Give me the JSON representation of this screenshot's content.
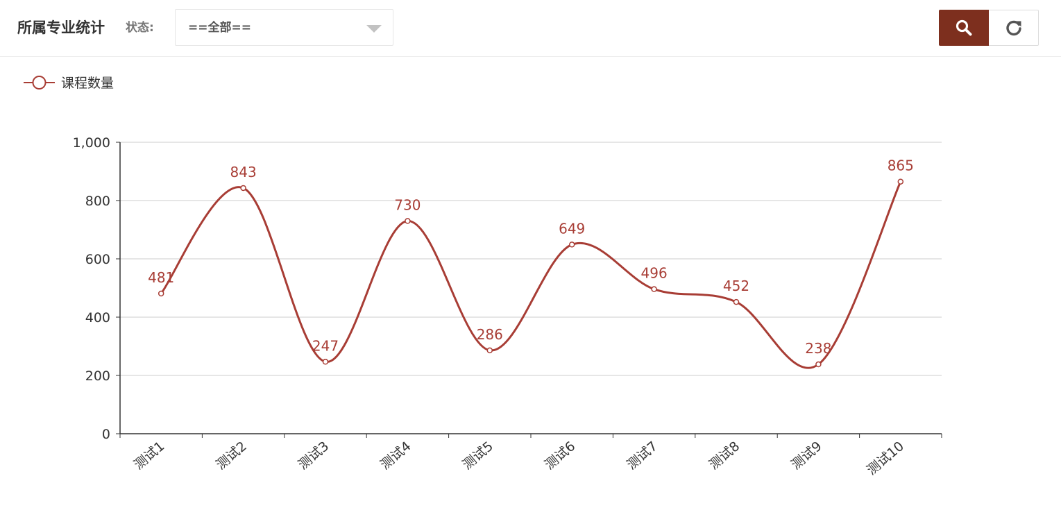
{
  "header": {
    "title": "所属专业统计",
    "status_label": "状态:",
    "status_select": {
      "selected": "==全部=="
    },
    "buttons": {
      "search_icon": "search-icon",
      "reset_icon": "refresh-icon"
    }
  },
  "colors": {
    "accent": "#7d2f1e",
    "series": "#a83d35",
    "axis": "#333333",
    "grid": "#cccccc",
    "tick_text": "#333333"
  },
  "chart_data": {
    "type": "line",
    "smooth": true,
    "categories": [
      "测试1",
      "测试2",
      "测试3",
      "测试4",
      "测试5",
      "测试6",
      "测试7",
      "测试8",
      "测试9",
      "测试10"
    ],
    "series": [
      {
        "name": "课程数量",
        "values": [
          481,
          843,
          247,
          730,
          286,
          649,
          496,
          452,
          238,
          865
        ]
      }
    ],
    "ylim": [
      0,
      1000
    ],
    "yticks": [
      0,
      200,
      400,
      600,
      800,
      1000
    ],
    "ytick_labels": [
      "0",
      "200",
      "400",
      "600",
      "800",
      "1,000"
    ],
    "grid": true,
    "legend": "top-left",
    "data_labels": true,
    "xlabel_rotation": -40
  }
}
